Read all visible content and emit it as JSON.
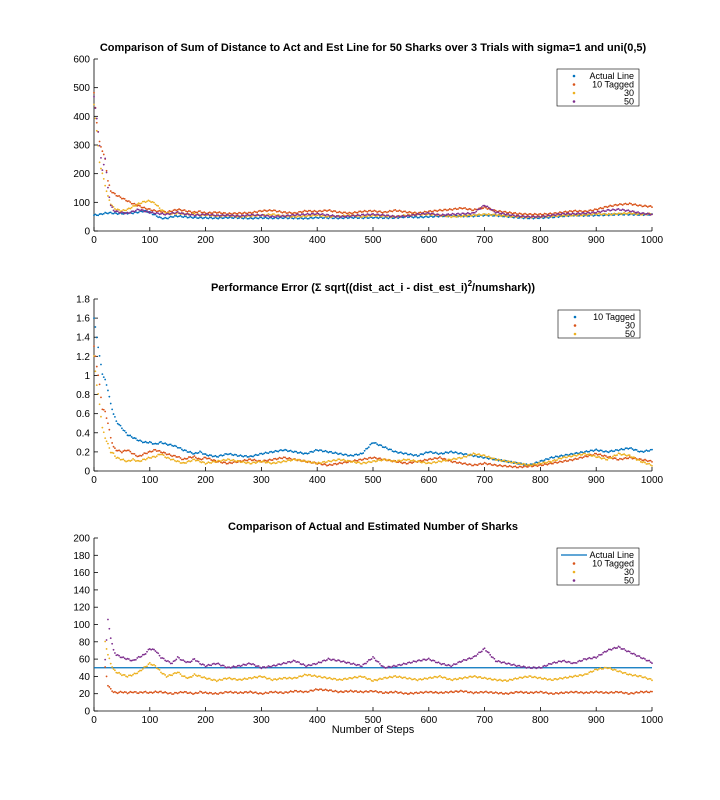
{
  "chart_data": [
    {
      "type": "scatter",
      "title": "Comparison of Sum of Distance to Act and Est Line for 50 Sharks over 3 Trials with sigma=1 and uni(0,5)",
      "xlabel": "",
      "ylabel": "",
      "xlim": [
        0,
        1000
      ],
      "ylim": [
        0,
        600
      ],
      "xticks": [
        "0",
        "100",
        "200",
        "300",
        "400",
        "500",
        "600",
        "700",
        "800",
        "900",
        "1000"
      ],
      "yticks": [
        "0",
        "100",
        "200",
        "300",
        "400",
        "500",
        "600"
      ],
      "grid": false,
      "legend_position": "top-right",
      "x": [
        0,
        5,
        10,
        15,
        20,
        25,
        30,
        35,
        40,
        50,
        60,
        70,
        80,
        90,
        100,
        110,
        120,
        130,
        140,
        150,
        160,
        170,
        180,
        190,
        200,
        220,
        240,
        260,
        280,
        300,
        320,
        340,
        360,
        380,
        400,
        420,
        440,
        460,
        480,
        500,
        520,
        540,
        560,
        580,
        600,
        620,
        640,
        660,
        680,
        700,
        720,
        740,
        760,
        780,
        800,
        820,
        840,
        860,
        880,
        900,
        920,
        940,
        960,
        980,
        1000
      ],
      "series": [
        {
          "name": "Actual Line",
          "color": "#0072BD",
          "values": [
            55,
            56,
            57,
            60,
            62,
            63,
            63,
            62,
            61,
            61,
            62,
            63,
            66,
            70,
            65,
            55,
            45,
            44,
            50,
            52,
            50,
            48,
            47,
            46,
            46,
            45,
            47,
            46,
            44,
            46,
            45,
            46,
            45,
            44,
            47,
            46,
            45,
            47,
            46,
            47,
            46,
            46,
            50,
            48,
            50,
            52,
            53,
            52,
            52,
            55,
            54,
            51,
            47,
            45,
            46,
            48,
            52,
            55,
            54,
            55,
            56,
            58,
            58,
            57,
            58
          ]
        },
        {
          "name": "10 Tagged",
          "color": "#D95319",
          "values": [
            480,
            380,
            310,
            280,
            250,
            175,
            140,
            132,
            125,
            115,
            105,
            95,
            88,
            80,
            75,
            70,
            68,
            65,
            70,
            75,
            72,
            68,
            65,
            68,
            62,
            65,
            60,
            62,
            63,
            70,
            72,
            65,
            62,
            70,
            68,
            72,
            65,
            62,
            68,
            70,
            65,
            72,
            66,
            62,
            68,
            72,
            75,
            80,
            73,
            82,
            70,
            65,
            60,
            58,
            58,
            60,
            65,
            70,
            68,
            75,
            85,
            92,
            95,
            88,
            85
          ]
        },
        {
          "name": "30",
          "color": "#EDB120",
          "values": [
            440,
            350,
            240,
            200,
            160,
            120,
            95,
            82,
            75,
            70,
            75,
            85,
            95,
            102,
            105,
            95,
            75,
            62,
            60,
            62,
            60,
            58,
            60,
            55,
            56,
            52,
            54,
            50,
            52,
            55,
            58,
            52,
            50,
            52,
            55,
            50,
            52,
            55,
            50,
            54,
            52,
            50,
            55,
            57,
            58,
            55,
            50,
            52,
            55,
            58,
            56,
            52,
            50,
            48,
            50,
            52,
            54,
            55,
            56,
            60,
            58,
            60,
            62,
            58,
            60
          ]
        },
        {
          "name": "50",
          "color": "#7E2F8E",
          "values": [
            470,
            390,
            300,
            210,
            255,
            150,
            90,
            72,
            68,
            64,
            62,
            68,
            75,
            70,
            65,
            62,
            60,
            58,
            62,
            65,
            60,
            58,
            55,
            56,
            58,
            54,
            55,
            52,
            56,
            55,
            50,
            52,
            56,
            58,
            60,
            55,
            50,
            52,
            56,
            58,
            55,
            50,
            52,
            58,
            62,
            55,
            58,
            60,
            62,
            90,
            65,
            58,
            52,
            50,
            50,
            55,
            60,
            60,
            62,
            65,
            72,
            75,
            70,
            62,
            58
          ]
        }
      ]
    },
    {
      "type": "scatter",
      "title": "Performance Error (Σ sqrt((dist_act_i - dist_est_i)²/numshark))",
      "title_main": "Performance Error (Σ sqrt((dist_act_i - dist_est_i)",
      "title_sup": "2",
      "title_tail": "/numshark))",
      "xlabel": "",
      "ylabel": "",
      "xlim": [
        0,
        1000
      ],
      "ylim": [
        0,
        1.8
      ],
      "xticks": [
        "0",
        "100",
        "200",
        "300",
        "400",
        "500",
        "600",
        "700",
        "800",
        "900",
        "1000"
      ],
      "yticks": [
        "0",
        "0.2",
        "0.4",
        "0.6",
        "0.8",
        "1",
        "1.2",
        "1.4",
        "1.6",
        "1.8"
      ],
      "grid": false,
      "legend_position": "top-right",
      "x": [
        0,
        5,
        10,
        15,
        20,
        25,
        30,
        35,
        40,
        50,
        60,
        70,
        80,
        90,
        100,
        110,
        120,
        130,
        140,
        150,
        160,
        170,
        180,
        190,
        200,
        220,
        240,
        260,
        280,
        300,
        320,
        340,
        360,
        380,
        400,
        420,
        440,
        460,
        480,
        500,
        520,
        540,
        560,
        580,
        600,
        620,
        640,
        660,
        680,
        700,
        720,
        740,
        760,
        780,
        800,
        820,
        840,
        860,
        880,
        900,
        920,
        940,
        960,
        980,
        1000
      ],
      "series": [
        {
          "name": "10 Tagged",
          "color": "#0072BD",
          "values": [
            1.6,
            1.4,
            1.2,
            1.02,
            0.95,
            0.85,
            0.7,
            0.6,
            0.52,
            0.45,
            0.38,
            0.35,
            0.32,
            0.3,
            0.3,
            0.28,
            0.3,
            0.28,
            0.27,
            0.25,
            0.22,
            0.2,
            0.18,
            0.2,
            0.17,
            0.15,
            0.18,
            0.16,
            0.15,
            0.18,
            0.2,
            0.22,
            0.2,
            0.18,
            0.22,
            0.2,
            0.18,
            0.16,
            0.18,
            0.3,
            0.25,
            0.2,
            0.18,
            0.16,
            0.2,
            0.18,
            0.2,
            0.18,
            0.16,
            0.14,
            0.12,
            0.1,
            0.08,
            0.06,
            0.1,
            0.14,
            0.16,
            0.18,
            0.2,
            0.22,
            0.2,
            0.22,
            0.24,
            0.2,
            0.22
          ]
        },
        {
          "name": "30",
          "color": "#D95319",
          "values": [
            1.3,
            1.1,
            0.9,
            0.65,
            0.62,
            0.5,
            0.35,
            0.25,
            0.22,
            0.2,
            0.22,
            0.18,
            0.15,
            0.18,
            0.2,
            0.22,
            0.2,
            0.18,
            0.16,
            0.15,
            0.12,
            0.14,
            0.15,
            0.12,
            0.14,
            0.1,
            0.08,
            0.1,
            0.12,
            0.1,
            0.12,
            0.14,
            0.12,
            0.1,
            0.08,
            0.06,
            0.08,
            0.1,
            0.12,
            0.14,
            0.12,
            0.1,
            0.08,
            0.1,
            0.12,
            0.14,
            0.1,
            0.08,
            0.06,
            0.08,
            0.06,
            0.05,
            0.04,
            0.05,
            0.06,
            0.08,
            0.1,
            0.12,
            0.15,
            0.18,
            0.15,
            0.12,
            0.14,
            0.12,
            0.1
          ]
        },
        {
          "name": "50",
          "color": "#EDB120",
          "values": [
            1.2,
            0.9,
            0.7,
            0.45,
            0.35,
            0.28,
            0.2,
            0.18,
            0.14,
            0.12,
            0.1,
            0.12,
            0.1,
            0.12,
            0.14,
            0.15,
            0.18,
            0.14,
            0.12,
            0.1,
            0.08,
            0.1,
            0.12,
            0.1,
            0.08,
            0.1,
            0.12,
            0.1,
            0.08,
            0.1,
            0.08,
            0.1,
            0.12,
            0.1,
            0.08,
            0.1,
            0.12,
            0.1,
            0.08,
            0.1,
            0.12,
            0.1,
            0.12,
            0.1,
            0.08,
            0.1,
            0.12,
            0.14,
            0.18,
            0.16,
            0.12,
            0.1,
            0.08,
            0.06,
            0.08,
            0.1,
            0.14,
            0.16,
            0.18,
            0.15,
            0.12,
            0.18,
            0.16,
            0.1,
            0.06
          ]
        }
      ]
    },
    {
      "type": "scatter",
      "title": "Comparison of Actual and Estimated Number of Sharks",
      "xlabel": "Number of Steps",
      "ylabel": "",
      "xlim": [
        0,
        1000
      ],
      "ylim": [
        0,
        200
      ],
      "xticks": [
        "0",
        "100",
        "200",
        "300",
        "400",
        "500",
        "600",
        "700",
        "800",
        "900",
        "1000"
      ],
      "yticks": [
        "0",
        "20",
        "40",
        "60",
        "80",
        "100",
        "120",
        "140",
        "160",
        "180",
        "200"
      ],
      "grid": false,
      "legend_position": "top-right",
      "actual_line": {
        "name": "Actual Line",
        "value": 50,
        "color": "#0072BD"
      },
      "x": [
        20,
        25,
        30,
        35,
        40,
        50,
        60,
        70,
        80,
        90,
        100,
        110,
        120,
        130,
        140,
        150,
        160,
        170,
        180,
        190,
        200,
        220,
        240,
        260,
        280,
        300,
        320,
        340,
        360,
        380,
        400,
        420,
        440,
        460,
        480,
        500,
        520,
        540,
        560,
        580,
        600,
        620,
        640,
        660,
        680,
        700,
        720,
        740,
        760,
        780,
        800,
        820,
        840,
        860,
        880,
        900,
        920,
        940,
        960,
        980,
        1000
      ],
      "series": [
        {
          "name": "10 Tagged",
          "color": "#D95319",
          "values": [
            50,
            30,
            25,
            22,
            21,
            22,
            21,
            22,
            21,
            22,
            21,
            22,
            22,
            21,
            20,
            21,
            22,
            21,
            20,
            22,
            21,
            20,
            22,
            21,
            22,
            20,
            22,
            21,
            23,
            22,
            25,
            24,
            22,
            23,
            22,
            23,
            21,
            22,
            20,
            21,
            22,
            21,
            22,
            23,
            21,
            22,
            21,
            20,
            22,
            21,
            22,
            20,
            21,
            22,
            21,
            22,
            21,
            22,
            20,
            22,
            22
          ]
        },
        {
          "name": "30",
          "color": "#EDB120",
          "values": [
            80,
            65,
            55,
            48,
            45,
            42,
            40,
            42,
            45,
            50,
            55,
            52,
            45,
            40,
            42,
            45,
            40,
            38,
            42,
            40,
            38,
            35,
            38,
            36,
            38,
            40,
            36,
            38,
            38,
            42,
            40,
            38,
            36,
            38,
            40,
            35,
            38,
            40,
            38,
            36,
            38,
            40,
            36,
            38,
            40,
            38,
            36,
            35,
            38,
            40,
            38,
            36,
            38,
            40,
            42,
            48,
            50,
            46,
            42,
            40,
            36
          ]
        },
        {
          "name": "50",
          "color": "#7E2F8E",
          "values": [
            60,
            105,
            85,
            70,
            65,
            62,
            60,
            58,
            62,
            65,
            72,
            70,
            62,
            58,
            55,
            62,
            58,
            56,
            60,
            55,
            52,
            55,
            50,
            52,
            55,
            50,
            52,
            55,
            58,
            52,
            55,
            60,
            58,
            55,
            52,
            62,
            50,
            52,
            55,
            58,
            60,
            55,
            52,
            58,
            62,
            72,
            58,
            55,
            52,
            50,
            50,
            55,
            58,
            55,
            60,
            62,
            70,
            74,
            68,
            62,
            56
          ]
        }
      ]
    }
  ]
}
